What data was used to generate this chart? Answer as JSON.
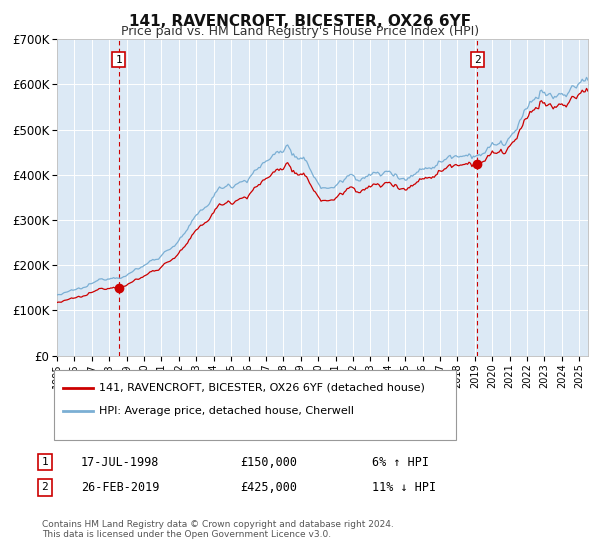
{
  "title": "141, RAVENCROFT, BICESTER, OX26 6YF",
  "subtitle": "Price paid vs. HM Land Registry's House Price Index (HPI)",
  "title_fontsize": 11,
  "subtitle_fontsize": 9,
  "bg_color": "#ffffff",
  "plot_bg_color": "#dce9f5",
  "grid_color": "#ffffff",
  "ylim": [
    0,
    700000
  ],
  "yticks": [
    0,
    100000,
    200000,
    300000,
    400000,
    500000,
    600000,
    700000
  ],
  "ytick_labels": [
    "£0",
    "£100K",
    "£200K",
    "£300K",
    "£400K",
    "£500K",
    "£600K",
    "£700K"
  ],
  "xlim_start": 1995.0,
  "xlim_end": 2025.5,
  "xticks": [
    1995,
    1996,
    1997,
    1998,
    1999,
    2000,
    2001,
    2002,
    2003,
    2004,
    2005,
    2006,
    2007,
    2008,
    2009,
    2010,
    2011,
    2012,
    2013,
    2014,
    2015,
    2016,
    2017,
    2018,
    2019,
    2020,
    2021,
    2022,
    2023,
    2024,
    2025
  ],
  "sale1_x": 1998.54,
  "sale1_y": 150000,
  "sale2_x": 2019.15,
  "sale2_y": 425000,
  "hpi_line_color": "#7bafd4",
  "price_line_color": "#cc0000",
  "vline_color": "#cc0000",
  "marker_color": "#cc0000",
  "legend1_label": "141, RAVENCROFT, BICESTER, OX26 6YF (detached house)",
  "legend2_label": "HPI: Average price, detached house, Cherwell",
  "note1_date": "17-JUL-1998",
  "note1_price": "£150,000",
  "note1_hpi": "6% ↑ HPI",
  "note2_date": "26-FEB-2019",
  "note2_price": "£425,000",
  "note2_hpi": "11% ↓ HPI",
  "footnote": "Contains HM Land Registry data © Crown copyright and database right 2024.\nThis data is licensed under the Open Government Licence v3.0."
}
